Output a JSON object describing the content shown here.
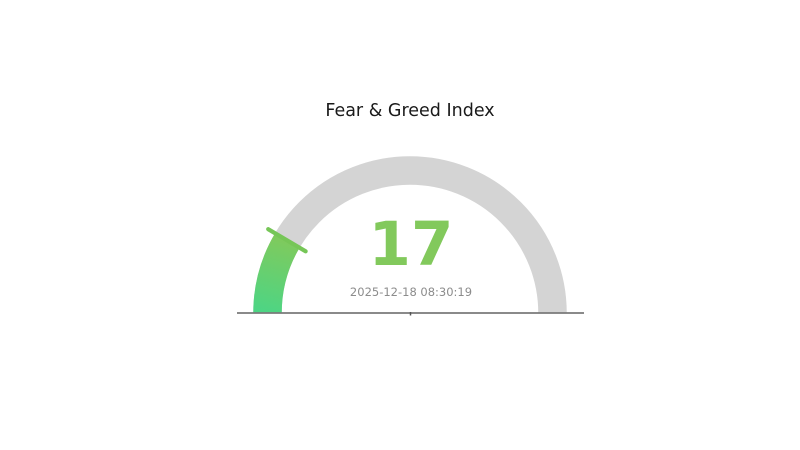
{
  "chart_data": {
    "type": "gauge",
    "title": "Fear & Greed Index",
    "value": 17,
    "min": 0,
    "max": 100,
    "timestamp": "2025-12-18 08:30:19",
    "start_angle_deg": 180,
    "end_angle_deg": 0,
    "legend": false,
    "grid": false,
    "colors": {
      "track": "#d4d4d4",
      "arc_gradient_start": "#4dd584",
      "arc_gradient_end": "#7fca5d",
      "pointer": "#76c657",
      "value_text": "#82c95c",
      "timestamp_text": "#8c8c8c",
      "title_text": "#1a1a1a",
      "baseline": "#7a7a7a",
      "baseline_tick": "#555555",
      "background": "#ffffff"
    }
  }
}
